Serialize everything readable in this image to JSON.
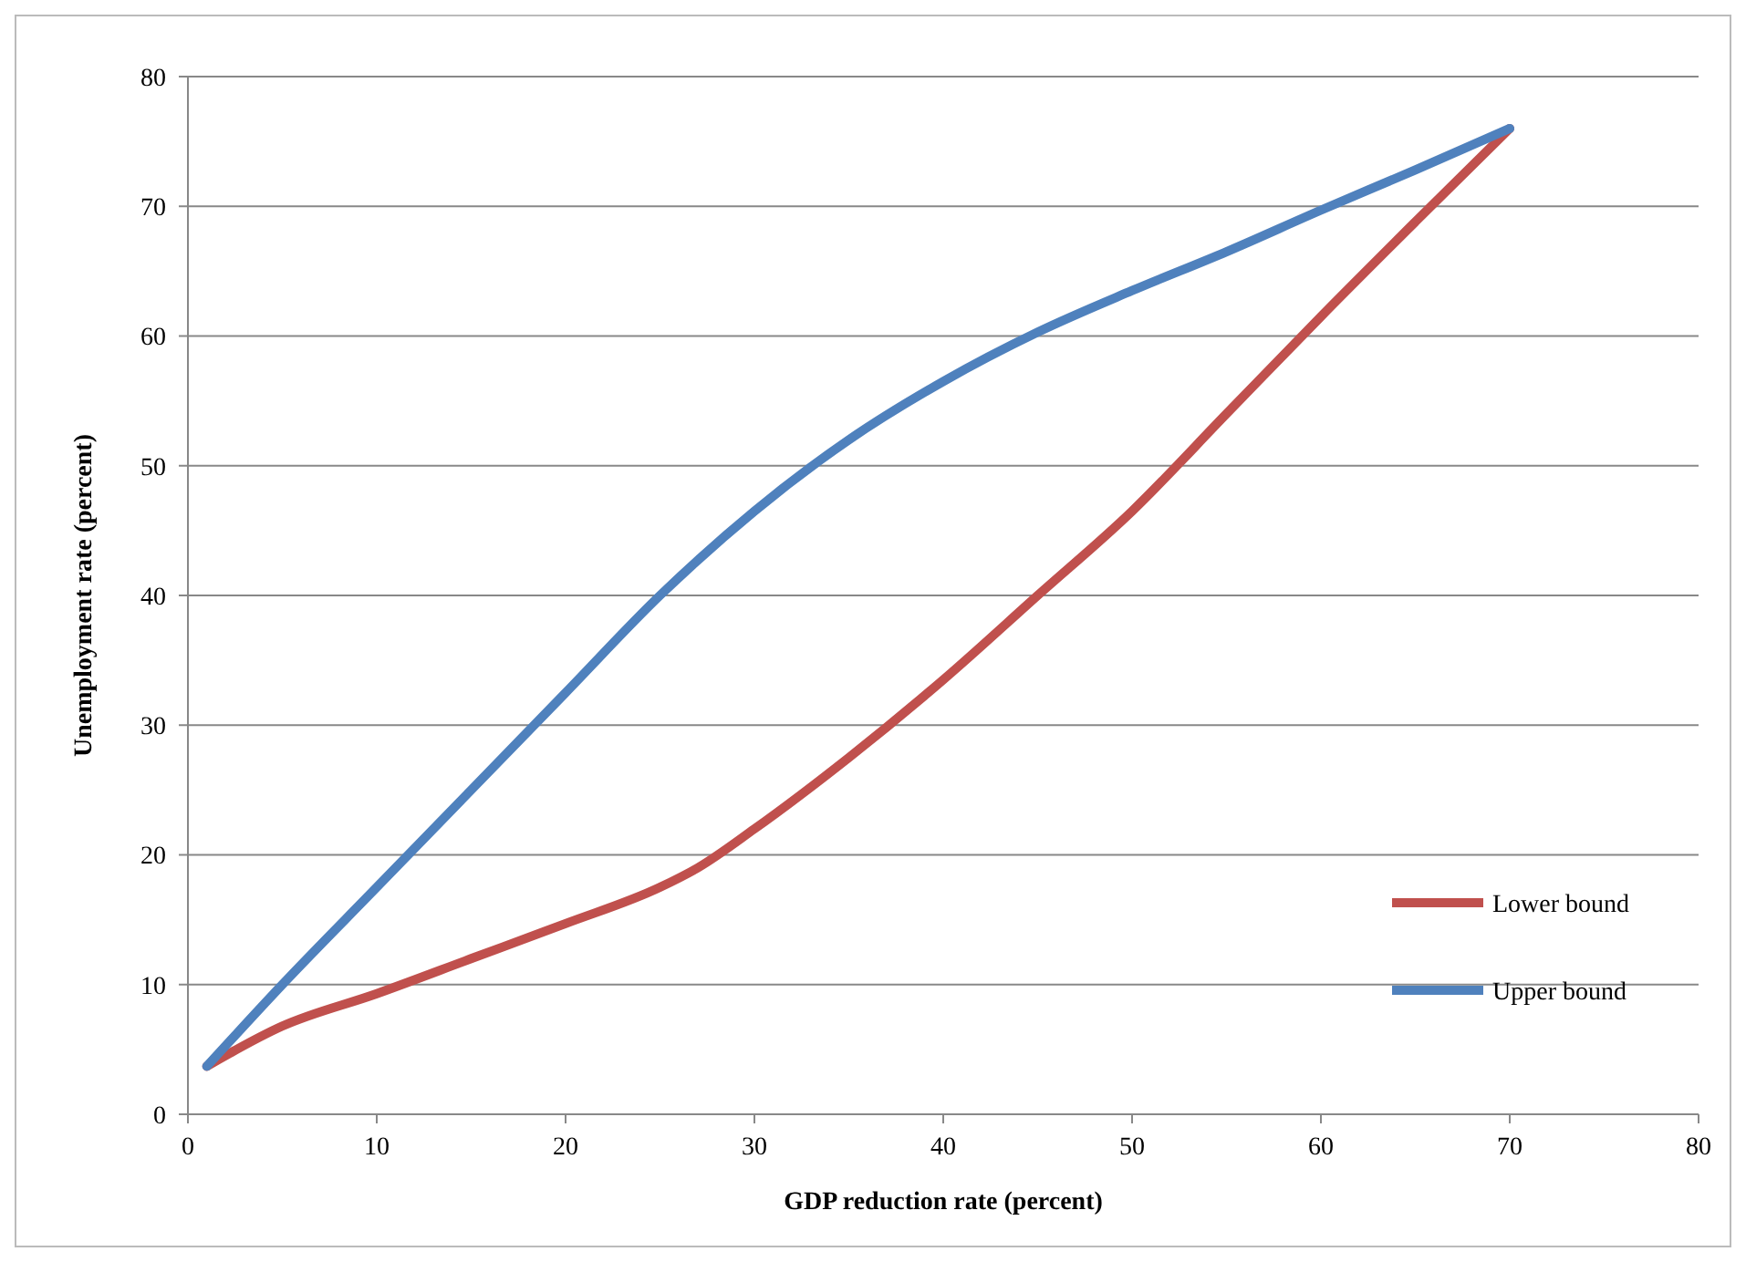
{
  "chart_data": {
    "type": "line",
    "xlabel": "GDP reduction rate (percent)",
    "ylabel": "Unemployment rate (percent)",
    "xlim": [
      0,
      80
    ],
    "xticks": [
      0,
      10,
      20,
      30,
      40,
      50,
      60,
      70,
      80
    ],
    "ylim": [
      0,
      80
    ],
    "yticks": [
      0,
      10,
      20,
      30,
      40,
      50,
      60,
      70,
      80
    ],
    "grid": "y",
    "legend": "right",
    "marker": "none",
    "line_style": "solid",
    "series": [
      {
        "name": "Lower bound",
        "color": "#c0504d",
        "x": [
          1,
          5,
          10,
          15,
          20,
          25,
          27,
          30,
          35,
          40,
          45,
          50,
          55,
          60,
          65,
          70
        ],
        "values": [
          3.7,
          6.8,
          9.3,
          12,
          14.7,
          17.5,
          19,
          22,
          27.5,
          33.5,
          40,
          46.5,
          54,
          61.5,
          68.8,
          76
        ]
      },
      {
        "name": "Upper bound",
        "color": "#4f81bd",
        "x": [
          1,
          5,
          10,
          15,
          20,
          25,
          30,
          35,
          40,
          45,
          50,
          55,
          60,
          65,
          70
        ],
        "values": [
          3.7,
          10,
          17.5,
          25,
          32.5,
          40,
          46.5,
          52,
          56.5,
          60.3,
          63.5,
          66.5,
          69.7,
          72.8,
          76
        ]
      }
    ]
  }
}
